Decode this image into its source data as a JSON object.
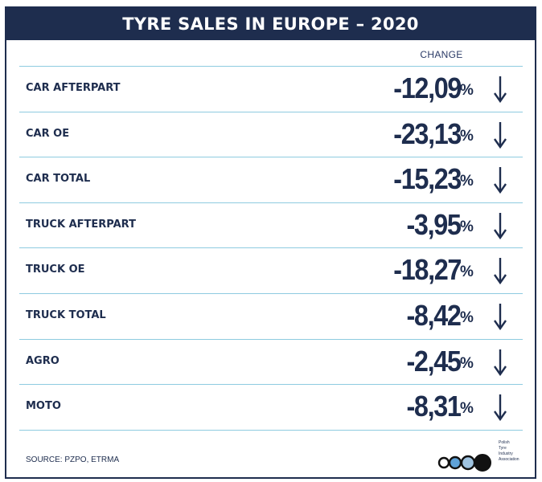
{
  "chart_data": {
    "type": "table",
    "title": "TYRE SALES IN EUROPE – 2020",
    "column_header": "CHANGE",
    "unit": "%",
    "categories": [
      "CAR AFTERPART",
      "CAR OE",
      "CAR TOTAL",
      "TRUCK AFTERPART",
      "TRUCK OE",
      "TRUCK TOTAL",
      "AGRO",
      "MOTO"
    ],
    "values": [
      -12.09,
      -23.13,
      -15.23,
      -3.95,
      -18.27,
      -8.42,
      -2.45,
      -8.31
    ],
    "value_labels": [
      "-12,09",
      "-23,13",
      "-15,23",
      "-3,95",
      "-18,27",
      "-8,42",
      "-2,45",
      "-8,31"
    ],
    "trend": "down"
  },
  "source": "SOURCE: PZPO, ETRMA",
  "logo": {
    "lines": [
      "Polish",
      "Tyre",
      "Industry",
      "Association"
    ],
    "circle_colors": [
      "#ffffff",
      "#5fa2d8",
      "#9fc3e0",
      "#111111"
    ]
  },
  "colors": {
    "navy": "#1e2d4e",
    "rule": "#8ecbe0",
    "background": "#ffffff"
  }
}
